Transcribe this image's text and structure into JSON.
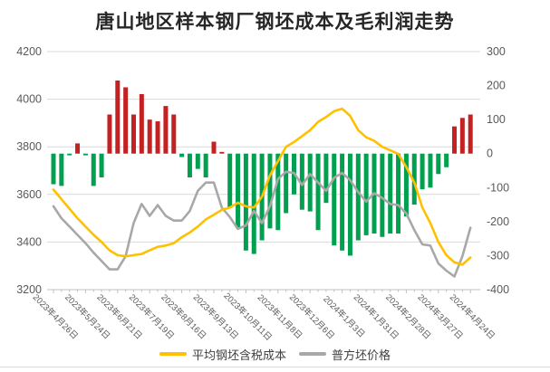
{
  "title": "唐山地区样本钢厂钢坯成本及毛利润走势",
  "legend": {
    "cost_label": "平均钢坯含税成本",
    "price_label": "普方坯价格"
  },
  "colors": {
    "bar_positive": "#C42222",
    "bar_negative": "#00A050",
    "cost_line": "#FFC000",
    "price_line": "#A8A8A8",
    "gridline": "#D9D9D9",
    "axis_line": "#BFBFBF",
    "axis_text": "#595959",
    "title_text": "#262626"
  },
  "chart_data": {
    "type": "combo-bar-line",
    "points_count": 53,
    "x_frequency": "weekly",
    "x_label_every": 4,
    "x_tick_labels": [
      "2023年4月26日",
      "2023年5月24日",
      "2023年6月21日",
      "2023年7月19日",
      "2023年8月16日",
      "2023年9月13日",
      "2023年10月11日",
      "2023年11月8日",
      "2023年12月6日",
      "2024年1月3日",
      "2024年1月31日",
      "2024年2月28日",
      "2024年3月27日",
      "2024年4月24日"
    ],
    "left_axis": {
      "range": [
        3200,
        4200
      ],
      "ticks": [
        4200,
        4000,
        3800,
        3600,
        3400,
        3200
      ]
    },
    "right_axis": {
      "range": [
        -400,
        300
      ],
      "ticks": [
        300,
        200,
        100,
        0,
        -100,
        -200,
        -300,
        -400
      ]
    },
    "grid": "horizontal-only",
    "legend_position": "bottom-center",
    "series": [
      {
        "name": "毛利润",
        "type": "bar",
        "axis": "right",
        "values": [
          -90,
          -95,
          -5,
          30,
          -5,
          -95,
          -70,
          115,
          215,
          195,
          115,
          175,
          100,
          95,
          140,
          115,
          -10,
          -70,
          -45,
          -70,
          35,
          5,
          -160,
          -220,
          -285,
          -295,
          -255,
          -220,
          -225,
          -175,
          -120,
          -165,
          -170,
          -225,
          -145,
          -270,
          -285,
          -300,
          -255,
          -240,
          -235,
          -245,
          -235,
          -235,
          -185,
          -150,
          -105,
          -100,
          -60,
          -40,
          80,
          105,
          115
        ]
      },
      {
        "name": "平均钢坯含税成本",
        "type": "line",
        "axis": "left",
        "values": [
          3620,
          3580,
          3540,
          3500,
          3465,
          3430,
          3400,
          3365,
          3345,
          3340,
          3345,
          3350,
          3365,
          3380,
          3385,
          3395,
          3420,
          3440,
          3465,
          3495,
          3515,
          3535,
          3545,
          3565,
          3550,
          3545,
          3590,
          3680,
          3740,
          3800,
          3820,
          3845,
          3870,
          3905,
          3925,
          3950,
          3960,
          3930,
          3870,
          3840,
          3825,
          3800,
          3785,
          3770,
          3715,
          3650,
          3545,
          3480,
          3400,
          3345,
          3315,
          3305,
          3335
        ]
      },
      {
        "name": "普方坯价格",
        "type": "line",
        "axis": "left",
        "values": [
          3550,
          3500,
          3465,
          3430,
          3395,
          3355,
          3320,
          3285,
          3285,
          3340,
          3480,
          3560,
          3510,
          3555,
          3510,
          3490,
          3490,
          3530,
          3615,
          3650,
          3650,
          3545,
          3505,
          3455,
          3470,
          3530,
          3480,
          3550,
          3665,
          3695,
          3690,
          3640,
          3685,
          3650,
          3615,
          3670,
          3690,
          3660,
          3610,
          3570,
          3605,
          3585,
          3560,
          3555,
          3520,
          3450,
          3390,
          3385,
          3310,
          3280,
          3255,
          3340,
          3460
        ]
      }
    ]
  }
}
